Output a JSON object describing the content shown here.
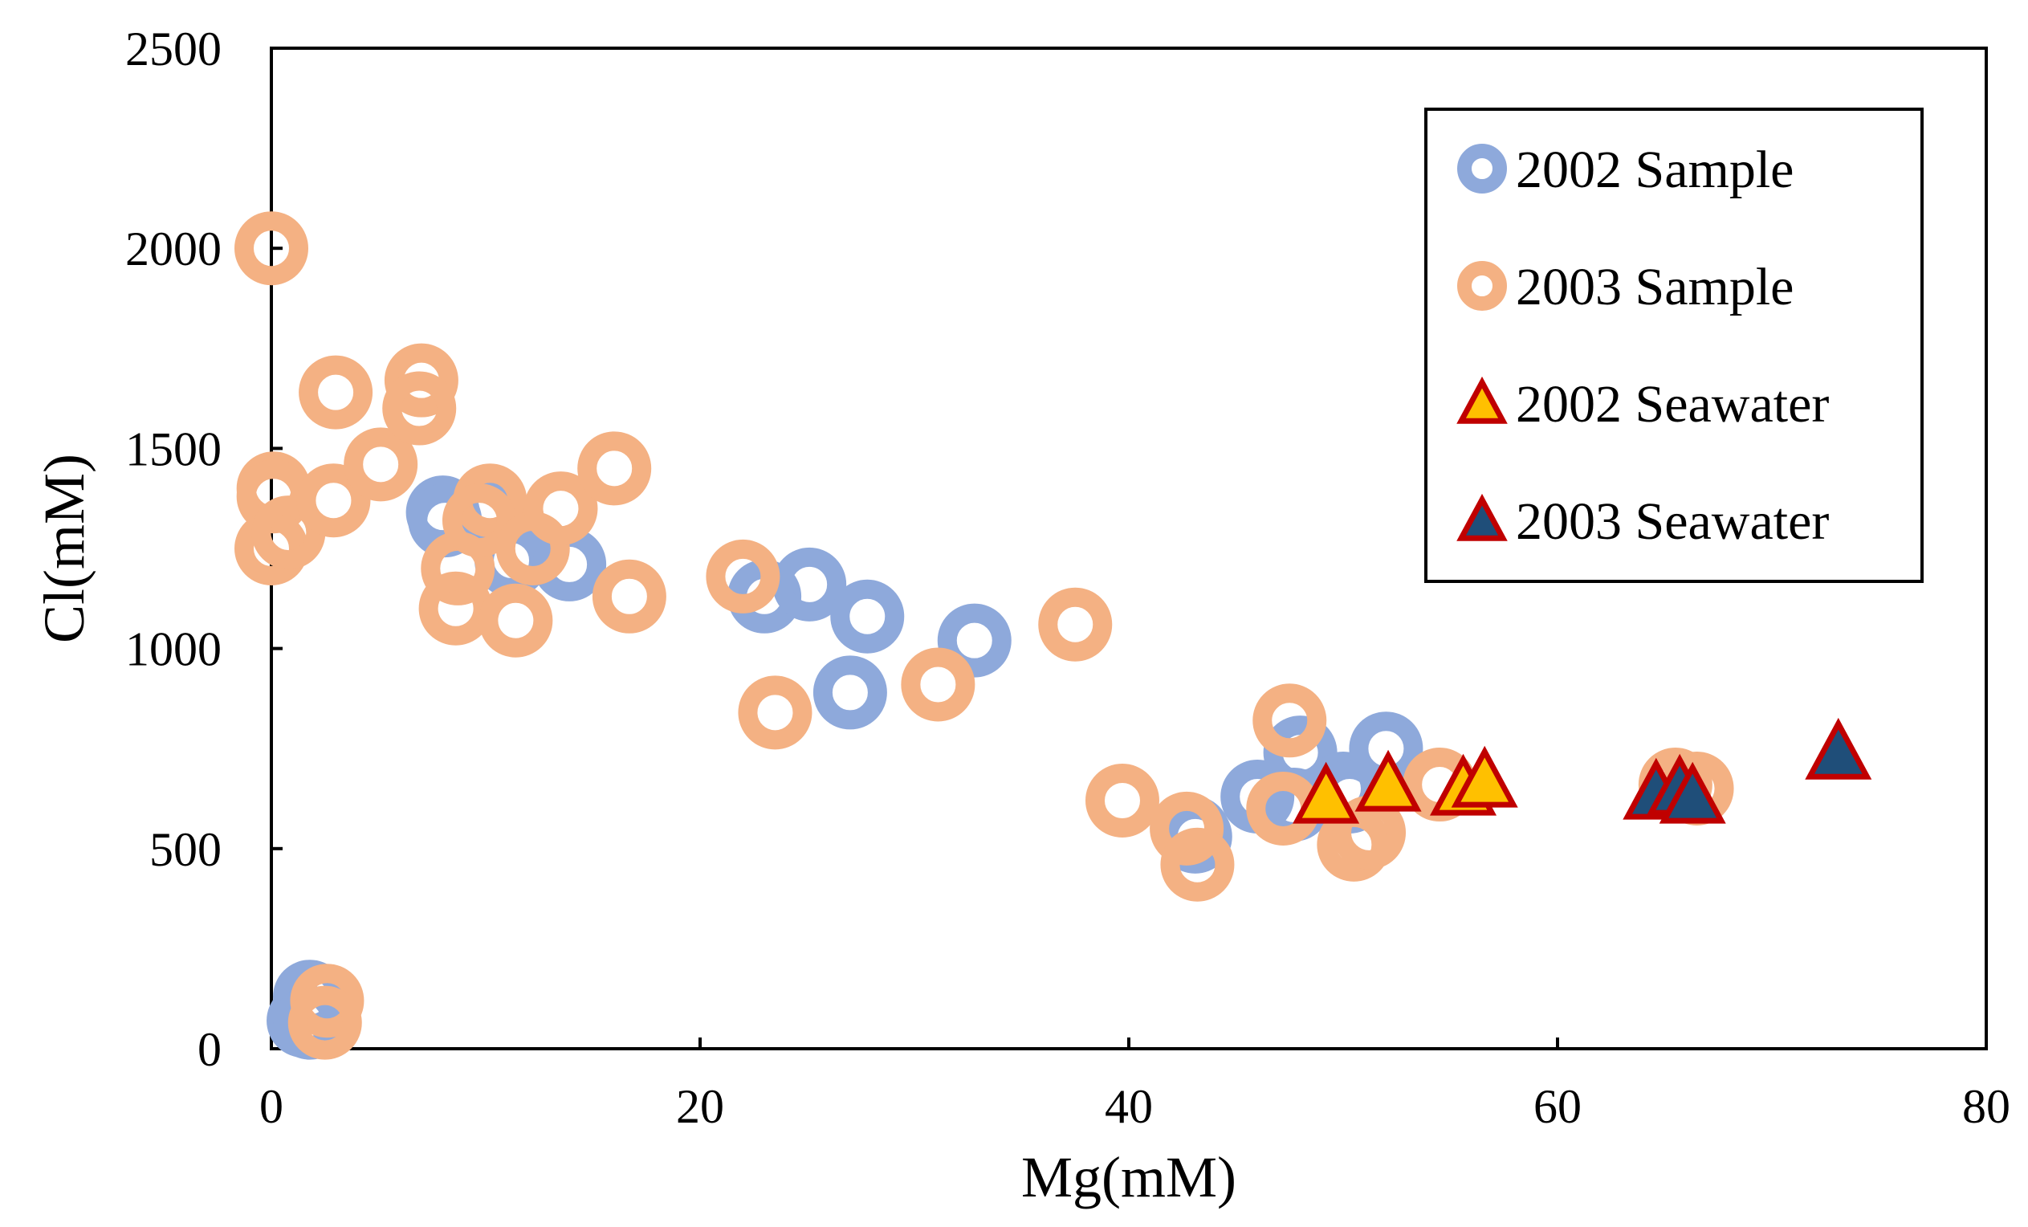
{
  "chart_data": {
    "type": "scatter",
    "title": "",
    "xlabel": "Mg(mM)",
    "ylabel": "Cl(mM)",
    "xlim": [
      0,
      80
    ],
    "ylim": [
      0,
      2500
    ],
    "xticks": [
      0,
      20,
      40,
      60,
      80
    ],
    "yticks": [
      0,
      500,
      1000,
      1500,
      2000,
      2500
    ],
    "grid": false,
    "legend_position": "top-right",
    "series": [
      {
        "name": "2002 Sample",
        "marker": "ring",
        "color": "#8EA9DB",
        "points": [
          [
            1.5,
            70
          ],
          [
            1.8,
            130
          ],
          [
            1.8,
            65
          ],
          [
            8,
            1340
          ],
          [
            8.1,
            1320
          ],
          [
            10,
            1350
          ],
          [
            11.2,
            1220
          ],
          [
            13.9,
            1210
          ],
          [
            23,
            1130
          ],
          [
            25.1,
            1160
          ],
          [
            27,
            890
          ],
          [
            27.8,
            1080
          ],
          [
            32.8,
            1020
          ],
          [
            43,
            540
          ],
          [
            43.1,
            530
          ],
          [
            46,
            630
          ],
          [
            47.7,
            610
          ],
          [
            48,
            740
          ],
          [
            50,
            650
          ],
          [
            50.3,
            630
          ],
          [
            52,
            750
          ]
        ]
      },
      {
        "name": "2003 Sample",
        "marker": "ring",
        "color": "#F4B183",
        "points": [
          [
            0,
            2000
          ],
          [
            0.1,
            1400
          ],
          [
            0.1,
            1380
          ],
          [
            0,
            1250
          ],
          [
            0.8,
            1290
          ],
          [
            3,
            1640
          ],
          [
            2.9,
            1370
          ],
          [
            5.1,
            1460
          ],
          [
            7,
            1670
          ],
          [
            6.9,
            1600
          ],
          [
            8.7,
            1200
          ],
          [
            8.6,
            1100
          ],
          [
            10.2,
            1370
          ],
          [
            9.7,
            1320
          ],
          [
            12.2,
            1250
          ],
          [
            11.4,
            1070
          ],
          [
            13.5,
            1350
          ],
          [
            16,
            1450
          ],
          [
            16.7,
            1130
          ],
          [
            22,
            1180
          ],
          [
            23.5,
            840
          ],
          [
            31.1,
            910
          ],
          [
            37.5,
            1060
          ],
          [
            39.7,
            620
          ],
          [
            42.7,
            550
          ],
          [
            43.2,
            460
          ],
          [
            47.2,
            600
          ],
          [
            47.5,
            820
          ],
          [
            50.5,
            510
          ],
          [
            51.2,
            540
          ],
          [
            54.5,
            660
          ],
          [
            65.5,
            660
          ],
          [
            66.5,
            650
          ],
          [
            2.6,
            120
          ],
          [
            2.5,
            65
          ]
        ]
      },
      {
        "name": "2002 Seawater",
        "marker": "triangle",
        "color": "#FFC000",
        "edge_color": "#C00000",
        "points": [
          [
            49.2,
            620
          ],
          [
            52.1,
            650
          ],
          [
            55.6,
            640
          ],
          [
            56.6,
            660
          ]
        ]
      },
      {
        "name": "2003 Seawater",
        "marker": "triangle",
        "color": "#1F4E79",
        "edge_color": "#C00000",
        "points": [
          [
            64.6,
            630
          ],
          [
            65.7,
            640
          ],
          [
            66.3,
            620
          ],
          [
            73.1,
            730
          ]
        ]
      }
    ]
  }
}
